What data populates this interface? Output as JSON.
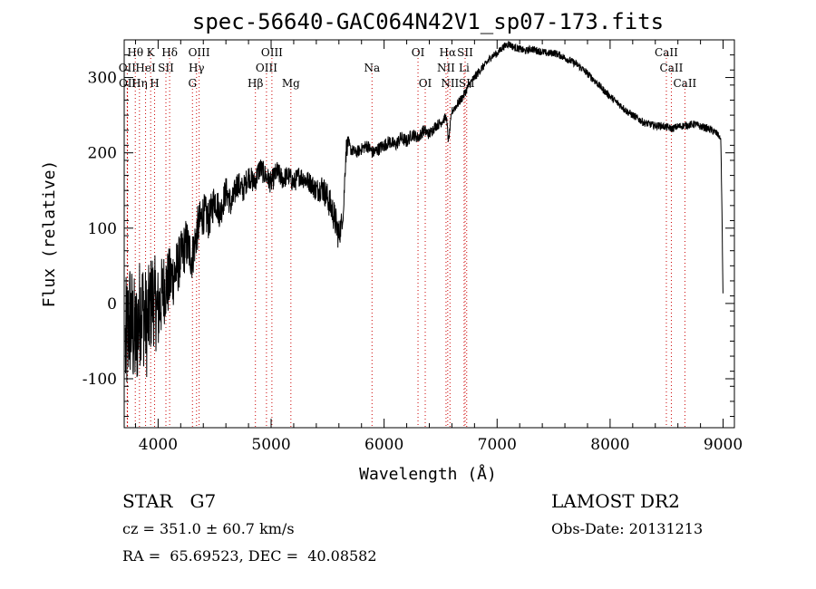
{
  "chart_data": {
    "type": "line",
    "title": "spec-56640-GAC064N42V1_sp07-173.fits",
    "xlabel": "Wavelength (Å)",
    "ylabel": "Flux (relative)",
    "xlim": [
      3700,
      9100
    ],
    "ylim": [
      -165,
      350
    ],
    "xticks": [
      4000,
      5000,
      6000,
      7000,
      8000,
      9000
    ],
    "yticks": [
      -100,
      0,
      100,
      200,
      300
    ],
    "series": [
      {
        "x": [
          3710,
          3750,
          3800,
          3850,
          3900,
          3950,
          4000,
          4050,
          4100,
          4150,
          4200,
          4250,
          4300,
          4350,
          4400,
          4450,
          4500,
          4550,
          4600,
          4650,
          4700,
          4750,
          4800,
          4850,
          4900,
          4950,
          5000,
          5050,
          5100,
          5150,
          5200,
          5250,
          5300,
          5350,
          5400,
          5450,
          5500,
          5550,
          5600,
          5640,
          5660,
          5680,
          5700,
          5750,
          5800,
          5850,
          5900,
          5950,
          6000,
          6050,
          6100,
          6150,
          6200,
          6250,
          6300,
          6350,
          6400,
          6450,
          6500,
          6550,
          6570,
          6600,
          6650,
          6700,
          6750,
          6800,
          6850,
          6900,
          6950,
          7000,
          7050,
          7100,
          7150,
          7200,
          7250,
          7300,
          7350,
          7400,
          7450,
          7500,
          7550,
          7600,
          7650,
          7700,
          7750,
          7800,
          7850,
          7900,
          7950,
          8000,
          8050,
          8100,
          8150,
          8200,
          8250,
          8300,
          8350,
          8400,
          8450,
          8500,
          8550,
          8600,
          8650,
          8700,
          8750,
          8800,
          8850,
          8900,
          8950,
          8980,
          8990,
          9000
        ],
        "y": [
          -60,
          -20,
          -50,
          0,
          -30,
          10,
          -10,
          20,
          30,
          40,
          60,
          80,
          60,
          100,
          120,
          110,
          140,
          120,
          150,
          130,
          160,
          150,
          170,
          160,
          180,
          170,
          160,
          175,
          165,
          170,
          160,
          170,
          165,
          160,
          150,
          155,
          140,
          120,
          90,
          120,
          200,
          215,
          205,
          200,
          205,
          210,
          200,
          205,
          210,
          215,
          210,
          220,
          215,
          225,
          220,
          230,
          225,
          235,
          240,
          248,
          215,
          255,
          265,
          275,
          290,
          300,
          310,
          318,
          328,
          332,
          340,
          345,
          340,
          338,
          335,
          338,
          336,
          334,
          332,
          333,
          330,
          326,
          322,
          318,
          312,
          305,
          298,
          290,
          282,
          275,
          268,
          262,
          255,
          250,
          245,
          240,
          238,
          236,
          236,
          234,
          232,
          235,
          236,
          237,
          238,
          235,
          233,
          230,
          225,
          218,
          120,
          0
        ]
      }
    ],
    "noise_amplitude": [
      90,
      85,
      80,
      75,
      70,
      65,
      60,
      50,
      45,
      40,
      35,
      35,
      30,
      30,
      28,
      26,
      24,
      22,
      20,
      20,
      18,
      18,
      16,
      16,
      16,
      15,
      15,
      15,
      14,
      14,
      14,
      14,
      14,
      14,
      16,
      18,
      20,
      22,
      22,
      10,
      20,
      10,
      8,
      8,
      8,
      9,
      9,
      9,
      9,
      9,
      9,
      9,
      9,
      8,
      8,
      8,
      8,
      7,
      7,
      6,
      6,
      6,
      6,
      6,
      6,
      6,
      6,
      5,
      5,
      5,
      5,
      5,
      5,
      5,
      5,
      5,
      5,
      5,
      5,
      5,
      5,
      5,
      5,
      5,
      5,
      5,
      5,
      5,
      5,
      5,
      5,
      5,
      5,
      5,
      5,
      5,
      5,
      5,
      5,
      5,
      5,
      5,
      5,
      5,
      5,
      5,
      5,
      5,
      5,
      2,
      2,
      2
    ],
    "line_color": "#000000",
    "marker_color": "#cc0000",
    "lines": [
      {
        "label": "Hθ",
        "wave": 3798,
        "row": 0
      },
      {
        "label": "K",
        "wave": 3934,
        "row": 0
      },
      {
        "label": "Hδ",
        "wave": 4102,
        "row": 0
      },
      {
        "label": "OIII",
        "wave": 4363,
        "row": 0
      },
      {
        "label": "OIII",
        "wave": 5007,
        "row": 0
      },
      {
        "label": "OI",
        "wave": 6300,
        "row": 0
      },
      {
        "label": "Hα",
        "wave": 6563,
        "row": 0
      },
      {
        "label": "SII",
        "wave": 6717,
        "row": 0
      },
      {
        "label": "CaII",
        "wave": 8498,
        "row": 0
      },
      {
        "label": "OII",
        "wave": 3727,
        "row": 1
      },
      {
        "label": "HeI",
        "wave": 3889,
        "row": 1
      },
      {
        "label": "SII",
        "wave": 4069,
        "row": 1
      },
      {
        "label": "Hγ",
        "wave": 4340,
        "row": 1
      },
      {
        "label": "OIII",
        "wave": 4959,
        "row": 1
      },
      {
        "label": "Na",
        "wave": 5893,
        "row": 1
      },
      {
        "label": "NII",
        "wave": 6548,
        "row": 1
      },
      {
        "label": "Li",
        "wave": 6708,
        "row": 1
      },
      {
        "label": "CaII",
        "wave": 8542,
        "row": 1
      },
      {
        "label": "OII",
        "wave": 3729,
        "row": 2
      },
      {
        "label": "Hη",
        "wave": 3835,
        "row": 2
      },
      {
        "label": "H",
        "wave": 3969,
        "row": 2
      },
      {
        "label": "G",
        "wave": 4304,
        "row": 2
      },
      {
        "label": "Hβ",
        "wave": 4861,
        "row": 2
      },
      {
        "label": "Mg",
        "wave": 5175,
        "row": 2
      },
      {
        "label": "OI",
        "wave": 6364,
        "row": 2
      },
      {
        "label": "NII",
        "wave": 6583,
        "row": 2
      },
      {
        "label": "SII",
        "wave": 6731,
        "row": 2
      },
      {
        "label": "CaII",
        "wave": 8662,
        "row": 2
      }
    ]
  },
  "info": {
    "class": "STAR   G7",
    "release": "LAMOST DR2",
    "cz": "cz = 351.0 ± 60.7 km/s",
    "obs_date": "Obs-Date: 20131213",
    "coords": "RA =  65.69523, DEC =  40.08582"
  }
}
